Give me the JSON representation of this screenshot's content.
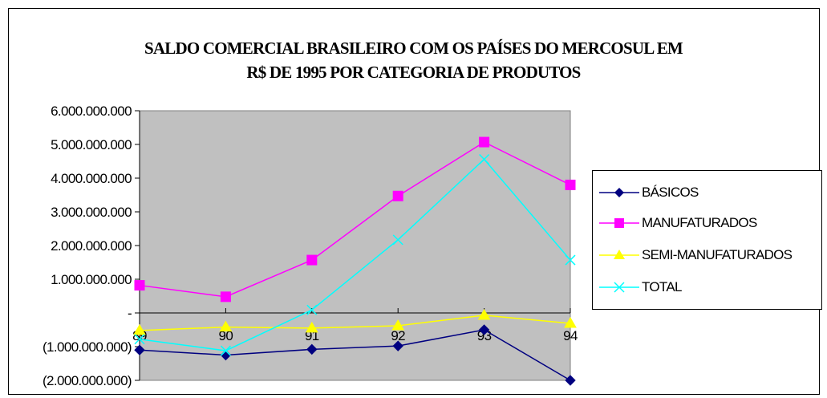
{
  "chart_data": {
    "type": "line",
    "title": [
      "SALDO COMERCIAL BRASILEIRO COM OS PAÍSES DO MERCOSUL EM",
      "R$ DE 1995 POR CATEGORIA DE PRODUTOS"
    ],
    "xlabel": "",
    "ylabel": "",
    "categories": [
      "89",
      "90",
      "91",
      "92",
      "93",
      "94"
    ],
    "ylim": [
      -2000000000,
      6000000000
    ],
    "yticks": [
      {
        "value": 6000000000,
        "label": "6.000.000.000"
      },
      {
        "value": 5000000000,
        "label": "5.000.000.000"
      },
      {
        "value": 4000000000,
        "label": "4.000.000.000"
      },
      {
        "value": 3000000000,
        "label": "3.000.000.000"
      },
      {
        "value": 2000000000,
        "label": "2.000.000.000"
      },
      {
        "value": 1000000000,
        "label": "1.000.000.000"
      },
      {
        "value": 0,
        "label": "-"
      },
      {
        "value": -1000000000,
        "label": "(1.000.000.000)"
      },
      {
        "value": -2000000000,
        "label": "(2.000.000.000)"
      }
    ],
    "plot_background": "#c0c0c0",
    "legend_position": "right",
    "series": [
      {
        "name": "BÁSICOS",
        "color": "#000080",
        "marker": "diamond",
        "values": [
          -1100000000,
          -1250000000,
          -1080000000,
          -980000000,
          -500000000,
          -2000000000
        ]
      },
      {
        "name": "MANUFATURADOS",
        "color": "#ff00ff",
        "marker": "square",
        "values": [
          820000000,
          480000000,
          1570000000,
          3470000000,
          5070000000,
          3800000000
        ]
      },
      {
        "name": "SEMI-MANUFATURADOS",
        "color": "#ffff00",
        "marker": "triangle",
        "values": [
          -520000000,
          -420000000,
          -450000000,
          -380000000,
          -70000000,
          -310000000
        ]
      },
      {
        "name": "TOTAL",
        "color": "#00ffff",
        "marker": "x",
        "values": [
          -780000000,
          -1120000000,
          90000000,
          2170000000,
          4560000000,
          1570000000
        ]
      }
    ]
  }
}
